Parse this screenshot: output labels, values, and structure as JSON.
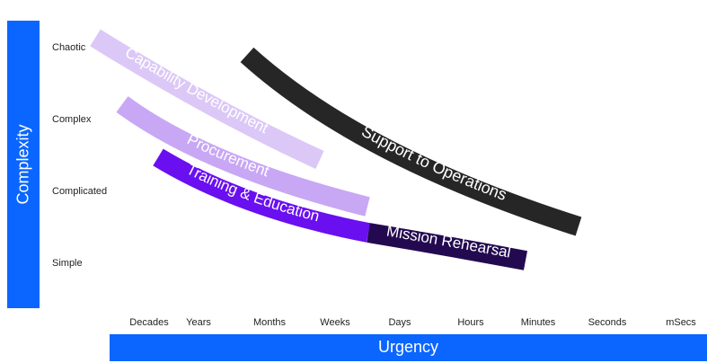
{
  "y_axis": {
    "title": "Complexity",
    "levels": [
      "Chaotic",
      "Complex",
      "Complicated",
      "Simple"
    ]
  },
  "x_axis": {
    "title": "Urgency",
    "ticks": [
      "Decades",
      "Years",
      "Months",
      "Weeks",
      "Days",
      "Hours",
      "Minutes",
      "Seconds",
      "mSecs"
    ]
  },
  "bands": [
    {
      "label": "Capability Development",
      "color": "#dcc8f7",
      "from_x": "Decades",
      "to_x": "Weeks",
      "from_y": "Chaotic",
      "to_y": "Complex"
    },
    {
      "label": "Procurement",
      "color": "#c8a7f5",
      "from_x": "Decades",
      "to_x": "Weeks",
      "from_y": "Complex",
      "to_y": "Complicated"
    },
    {
      "label": "Training & Education",
      "color": "#6a0ff0",
      "from_x": "Decades",
      "to_x": "Days",
      "from_y": "Complex",
      "to_y": "Complicated"
    },
    {
      "label": "Mission Rehearsal",
      "color": "#230a50",
      "from_x": "Days",
      "to_x": "Minutes",
      "from_y": "Complicated",
      "to_y": "Simple"
    },
    {
      "label": "Support to Operations",
      "color": "#262626",
      "from_x": "Months",
      "to_x": "Seconds",
      "from_y": "Chaotic",
      "to_y": "Complicated"
    }
  ]
}
